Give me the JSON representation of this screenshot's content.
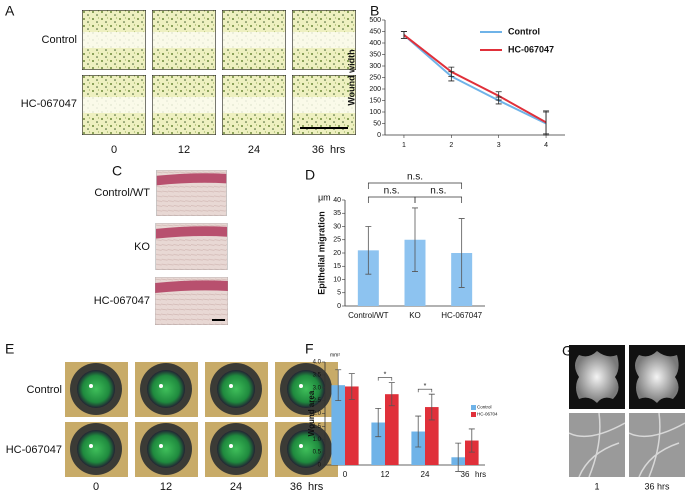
{
  "panels": {
    "letters": [
      "A",
      "B",
      "C",
      "D",
      "E",
      "F",
      "G"
    ],
    "A": {
      "rows": [
        "Control",
        "HC-067047"
      ],
      "columns": [
        "0",
        "12",
        "24",
        "36"
      ],
      "unit": "hrs"
    },
    "C": {
      "rows": [
        "Control/WT",
        "KO",
        "HC-067047"
      ]
    },
    "E": {
      "rows": [
        "Control",
        "HC-067047"
      ],
      "columns": [
        "0",
        "12",
        "24",
        "36"
      ],
      "unit": "hrs"
    },
    "G": {
      "columns": [
        "1",
        "36 hrs"
      ]
    }
  },
  "chart_data": [
    {
      "type": "line",
      "y_label": "Wound width",
      "x": [
        1,
        2,
        3,
        4
      ],
      "xlim": [
        0.6,
        4.4
      ],
      "xticks": [
        1,
        2,
        3,
        4
      ],
      "ylim": [
        0,
        500
      ],
      "yticks": [
        0,
        50,
        100,
        150,
        200,
        250,
        300,
        350,
        400,
        450,
        500
      ],
      "legend": "upper right",
      "series": [
        {
          "name": "Control",
          "color": "#6fb3e8",
          "values": [
            435,
            255,
            150,
            50
          ],
          "errors": [
            15,
            20,
            15,
            50
          ]
        },
        {
          "name": "HC-067047",
          "color": "#e0303a",
          "values": [
            435,
            275,
            170,
            55
          ],
          "errors": [
            15,
            20,
            18,
            50
          ]
        }
      ]
    },
    {
      "type": "bar",
      "y_label": "Epithelial migration",
      "y_unit": "μm",
      "categories": [
        "Control/WT",
        "KO",
        "HC-067047"
      ],
      "values": [
        21,
        25,
        20
      ],
      "errors": [
        9,
        12,
        13
      ],
      "color": "#8dc3f0",
      "ylim": [
        0,
        40
      ],
      "yticks": [
        0,
        5,
        10,
        15,
        20,
        25,
        30,
        35,
        40
      ],
      "annotations": [
        "n.s.",
        "n.s.",
        "n.s."
      ]
    },
    {
      "type": "bar",
      "y_label": "Wound area",
      "y_unit": "mm²",
      "x_unit": "hrs",
      "categories": [
        "0",
        "12",
        "24",
        "36"
      ],
      "ylim": [
        0,
        4
      ],
      "yticks": [
        0,
        0.5,
        {
          "value": 1,
          "label": "1.0"
        },
        1.5,
        {
          "value": 2,
          "label": "2.0"
        },
        2.5,
        {
          "value": 3,
          "label": "3.0"
        },
        3.5,
        {
          "value": 4,
          "label": "4.0"
        }
      ],
      "legend": "right",
      "series": [
        {
          "name": "Control",
          "color": "#6fb3e8",
          "values": [
            3.1,
            1.65,
            1.3,
            0.3
          ],
          "errors": [
            0.6,
            0.55,
            0.6,
            0.55
          ]
        },
        {
          "name": "HC-06704",
          "color": "#e0303a",
          "values": [
            3.05,
            2.75,
            2.25,
            0.95
          ],
          "errors": [
            0.5,
            0.45,
            0.5,
            0.45
          ]
        }
      ],
      "annotations": [
        "*",
        "*"
      ]
    }
  ]
}
